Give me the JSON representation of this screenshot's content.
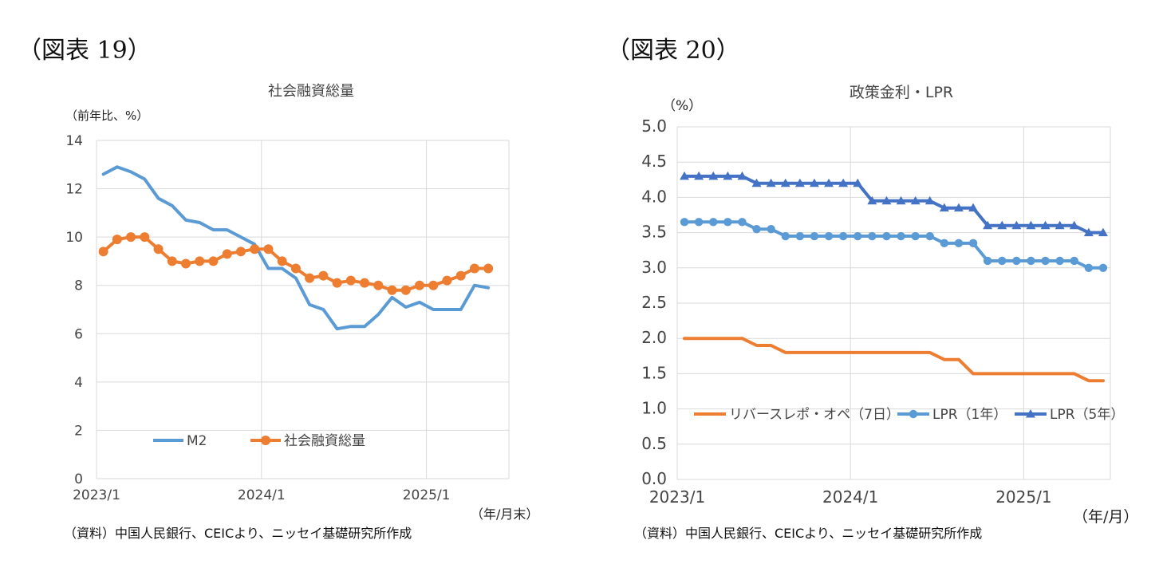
{
  "charts": [
    {
      "figure_label": "（図表 19）",
      "source": "（資料）中国人民銀行、CEICより、ニッセイ基礎研究所作成",
      "chart_data": {
        "type": "line",
        "title": "社会融資総量",
        "ylabel": "（前年比、%）",
        "xlabel": "（年/月末）",
        "ylim": [
          0,
          14
        ],
        "yticks": [
          "0",
          "2",
          "4",
          "6",
          "8",
          "10",
          "12",
          "14"
        ],
        "ytick_values": [
          0,
          2,
          4,
          6,
          8,
          10,
          12,
          14
        ],
        "xtick_labels": [
          "2023/1",
          "2024/1",
          "2025/1"
        ],
        "xtick_index": [
          0,
          12,
          24
        ],
        "x": [
          "2023/1",
          "2023/2",
          "2023/3",
          "2023/4",
          "2023/5",
          "2023/6",
          "2023/7",
          "2023/8",
          "2023/9",
          "2023/10",
          "2023/11",
          "2023/12",
          "2024/1",
          "2024/2",
          "2024/3",
          "2024/4",
          "2024/5",
          "2024/6",
          "2024/7",
          "2024/8",
          "2024/9",
          "2024/10",
          "2024/11",
          "2024/12",
          "2025/1",
          "2025/2",
          "2025/3",
          "2025/4",
          "2025/5",
          "2025/6"
        ],
        "grid": true,
        "legend_position": "bottom-center",
        "series": [
          {
            "name": "M2",
            "color": "#5B9BD5",
            "marker": "none",
            "values": [
              12.6,
              12.9,
              12.7,
              12.4,
              11.6,
              11.3,
              10.7,
              10.6,
              10.3,
              10.3,
              10.0,
              9.7,
              8.7,
              8.7,
              8.3,
              7.2,
              7.0,
              6.2,
              6.3,
              6.3,
              6.8,
              7.5,
              7.1,
              7.3,
              7.0,
              7.0,
              7.0,
              8.0,
              7.9,
              null
            ]
          },
          {
            "name": "社会融資総量",
            "color": "#ED7D31",
            "marker": "circle",
            "values": [
              9.4,
              9.9,
              10.0,
              10.0,
              9.5,
              9.0,
              8.9,
              9.0,
              9.0,
              9.3,
              9.4,
              9.5,
              9.5,
              9.0,
              8.7,
              8.3,
              8.4,
              8.1,
              8.2,
              8.1,
              8.0,
              7.8,
              7.8,
              8.0,
              8.0,
              8.2,
              8.4,
              8.7,
              8.7,
              null
            ]
          }
        ]
      }
    },
    {
      "figure_label": "（図表 20）",
      "source": "（資料）中国人民銀行、CEICより、ニッセイ基礎研究所作成",
      "chart_data": {
        "type": "line",
        "title": "政策金利・LPR",
        "ylabel": "（%）",
        "xlabel": "（年/月）",
        "ylim": [
          0,
          5
        ],
        "yticks": [
          "0.0",
          "0.5",
          "1.0",
          "1.5",
          "2.0",
          "2.5",
          "3.0",
          "3.5",
          "4.0",
          "4.5",
          "5.0"
        ],
        "ytick_values": [
          0,
          0.5,
          1,
          1.5,
          2,
          2.5,
          3,
          3.5,
          4,
          4.5,
          5
        ],
        "xtick_labels": [
          "2023/1",
          "2024/1",
          "2025/1"
        ],
        "xtick_index": [
          0,
          12,
          24
        ],
        "x": [
          "2023/1",
          "2023/2",
          "2023/3",
          "2023/4",
          "2023/5",
          "2023/6",
          "2023/7",
          "2023/8",
          "2023/9",
          "2023/10",
          "2023/11",
          "2023/12",
          "2024/1",
          "2024/2",
          "2024/3",
          "2024/4",
          "2024/5",
          "2024/6",
          "2024/7",
          "2024/8",
          "2024/9",
          "2024/10",
          "2024/11",
          "2024/12",
          "2025/1",
          "2025/2",
          "2025/3",
          "2025/4",
          "2025/5",
          "2025/6"
        ],
        "grid": true,
        "legend_position": "bottom",
        "series": [
          {
            "name": "リバースレポ・オペ（7日）",
            "color": "#ED7D31",
            "marker": "none",
            "values": [
              2.0,
              2.0,
              2.0,
              2.0,
              2.0,
              1.9,
              1.9,
              1.8,
              1.8,
              1.8,
              1.8,
              1.8,
              1.8,
              1.8,
              1.8,
              1.8,
              1.8,
              1.8,
              1.7,
              1.7,
              1.5,
              1.5,
              1.5,
              1.5,
              1.5,
              1.5,
              1.5,
              1.5,
              1.4,
              1.4
            ]
          },
          {
            "name": "LPR（1年）",
            "color": "#5B9BD5",
            "marker": "circle",
            "values": [
              3.65,
              3.65,
              3.65,
              3.65,
              3.65,
              3.55,
              3.55,
              3.45,
              3.45,
              3.45,
              3.45,
              3.45,
              3.45,
              3.45,
              3.45,
              3.45,
              3.45,
              3.45,
              3.35,
              3.35,
              3.35,
              3.1,
              3.1,
              3.1,
              3.1,
              3.1,
              3.1,
              3.1,
              3.0,
              3.0
            ]
          },
          {
            "name": "LPR（5年）",
            "color": "#4472C4",
            "marker": "triangle",
            "values": [
              4.3,
              4.3,
              4.3,
              4.3,
              4.3,
              4.2,
              4.2,
              4.2,
              4.2,
              4.2,
              4.2,
              4.2,
              4.2,
              3.95,
              3.95,
              3.95,
              3.95,
              3.95,
              3.85,
              3.85,
              3.85,
              3.6,
              3.6,
              3.6,
              3.6,
              3.6,
              3.6,
              3.6,
              3.5,
              3.5
            ]
          }
        ]
      }
    }
  ]
}
